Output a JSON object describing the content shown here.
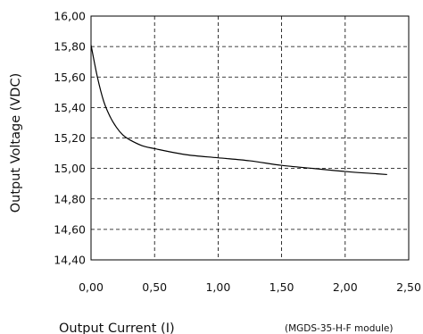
{
  "chart_data": {
    "type": "line",
    "title": "",
    "xlabel": "Output Current (I)",
    "ylabel": "Output Voltage (VDC)",
    "note": "(MGDS-35-H-F module)",
    "xlim": [
      0,
      2.5
    ],
    "ylim": [
      14.4,
      16.0
    ],
    "x_ticks": [
      0,
      0.5,
      1.0,
      1.5,
      2.0,
      2.5
    ],
    "y_ticks": [
      14.4,
      14.6,
      14.8,
      15.0,
      15.2,
      15.4,
      15.6,
      15.8,
      16.0
    ],
    "x_tick_labels": [
      "0,00",
      "0,50",
      "1,00",
      "1,50",
      "2,00",
      "2,50"
    ],
    "y_tick_labels": [
      "14,40",
      "14,60",
      "14,80",
      "15,00",
      "15,20",
      "15,40",
      "15,60",
      "15,80",
      "16,00"
    ],
    "grid": true,
    "grid_style": "dashed",
    "line_color": "#000000",
    "series": [
      {
        "x": [
          0.0,
          0.05,
          0.1,
          0.15,
          0.2,
          0.25,
          0.3,
          0.4,
          0.5,
          0.75,
          1.0,
          1.25,
          1.5,
          1.75,
          2.0,
          2.25,
          2.33
        ],
        "values": [
          15.81,
          15.6,
          15.44,
          15.34,
          15.27,
          15.22,
          15.19,
          15.15,
          15.13,
          15.09,
          15.07,
          15.05,
          15.02,
          15.0,
          14.98,
          14.965,
          14.96
        ]
      }
    ]
  }
}
